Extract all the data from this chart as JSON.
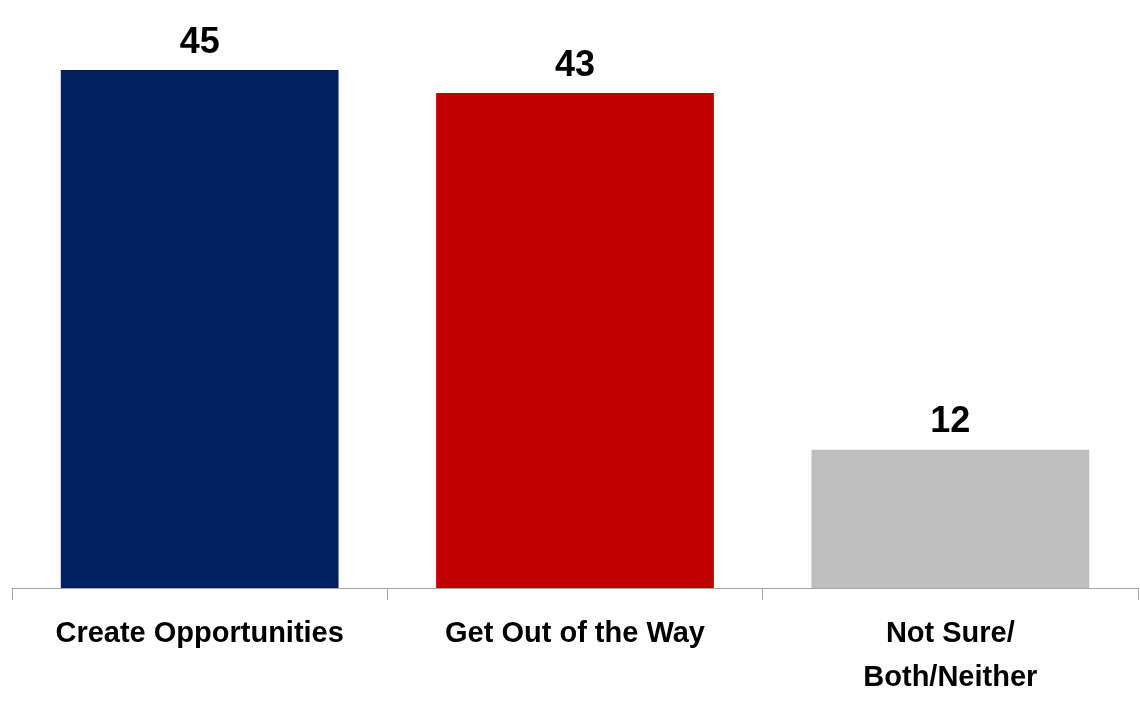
{
  "chart_data": {
    "type": "bar",
    "categories": [
      "Create Opportunities",
      "Get Out of the Way",
      "Not Sure/\nBoth/Neither"
    ],
    "values": [
      45,
      43,
      12
    ],
    "colors": [
      "#002060",
      "#c00000",
      "#bfbfbf"
    ],
    "data_labels": true
  }
}
